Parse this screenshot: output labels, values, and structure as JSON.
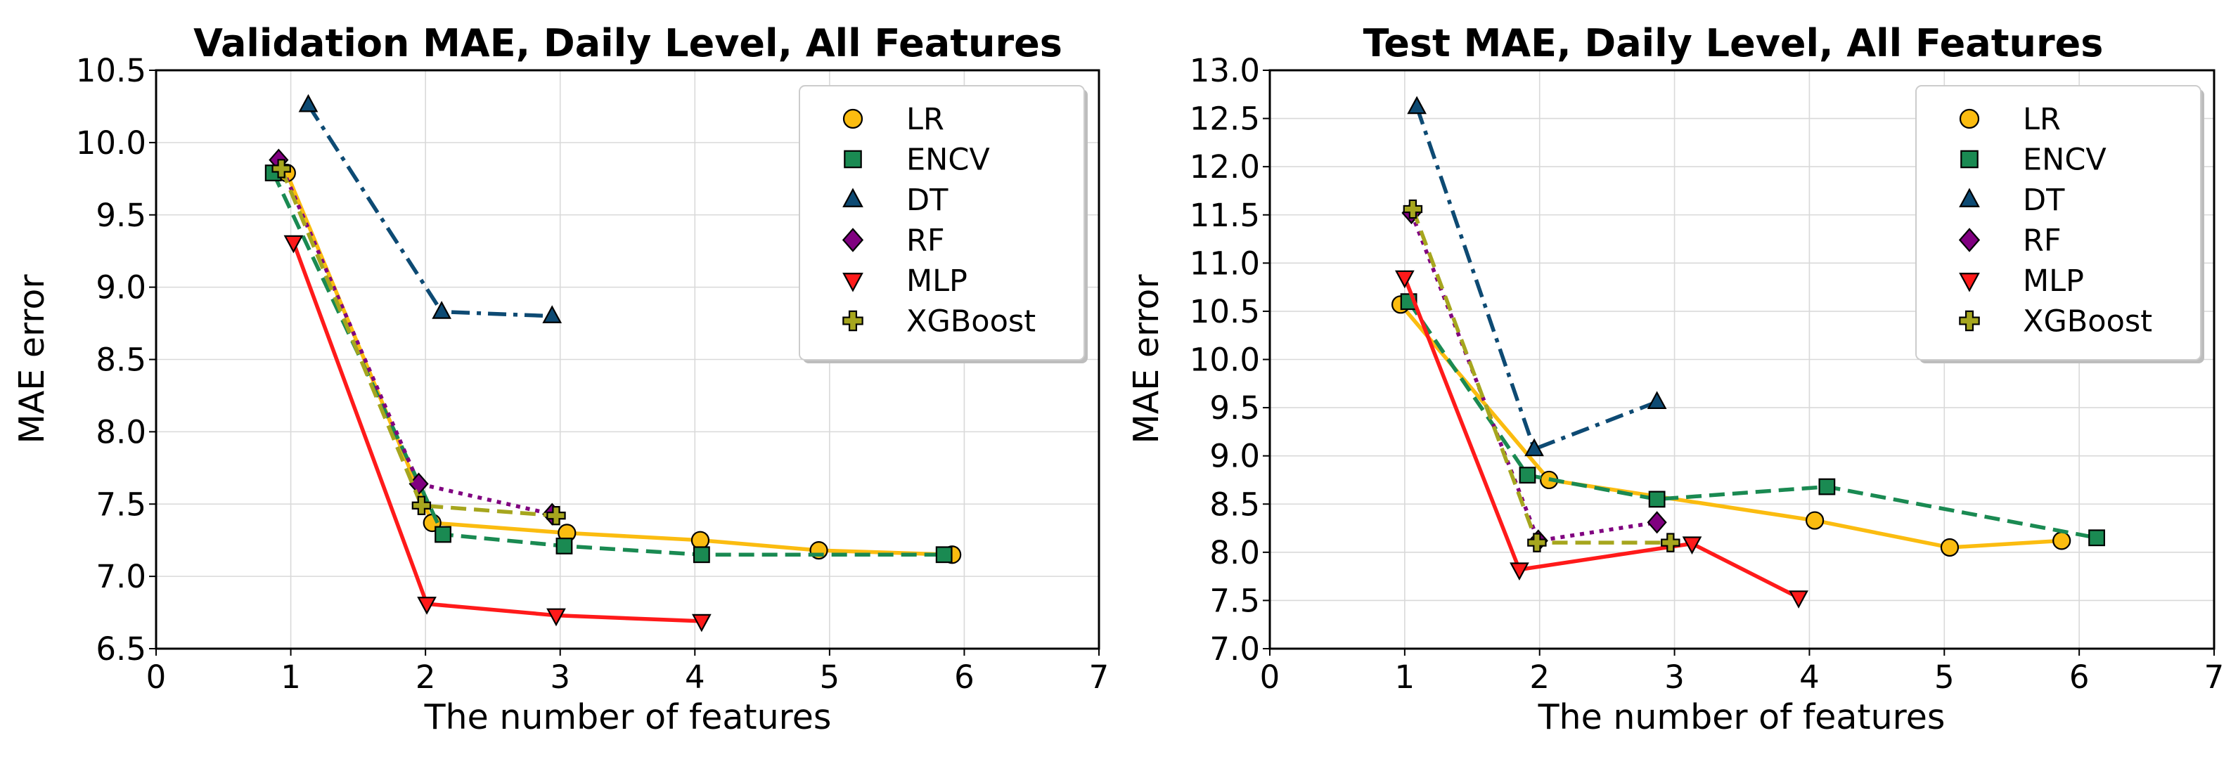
{
  "chart_data": [
    {
      "type": "line",
      "title": "Validation MAE, Daily Level, All Features",
      "xlabel": "The number of features",
      "ylabel": "MAE error",
      "xlim": [
        0,
        7
      ],
      "ylim": [
        6.5,
        10.5
      ],
      "xticks": [
        "0",
        "1",
        "2",
        "3",
        "4",
        "5",
        "6",
        "7"
      ],
      "yticks": [
        "6.5",
        "7.0",
        "7.5",
        "8.0",
        "8.5",
        "9.0",
        "9.5",
        "10.0",
        "10.5"
      ],
      "grid": true,
      "legend_position": "top-right",
      "series": [
        {
          "name": "LR",
          "color": "#fbbc10",
          "marker": "circle",
          "line": "solid",
          "x": [
            0.97,
            2.05,
            3.05,
            4.04,
            4.92,
            5.91
          ],
          "y": [
            9.79,
            7.37,
            7.3,
            7.25,
            7.18,
            7.15
          ]
        },
        {
          "name": "ENCV",
          "color": "#1a8a52",
          "marker": "square",
          "line": "dashed",
          "x": [
            0.87,
            2.13,
            3.03,
            4.05,
            5.85
          ],
          "y": [
            9.79,
            7.29,
            7.21,
            7.15,
            7.15
          ]
        },
        {
          "name": "DT",
          "color": "#0d4a73",
          "marker": "triangle-up",
          "line": "dashdot",
          "x": [
            1.13,
            2.12,
            2.94
          ],
          "y": [
            10.26,
            8.83,
            8.8
          ]
        },
        {
          "name": "RF",
          "color": "#800080",
          "marker": "diamond",
          "line": "dotted",
          "x": [
            0.91,
            1.95,
            2.94
          ],
          "y": [
            9.88,
            7.64,
            7.43
          ]
        },
        {
          "name": "MLP",
          "color": "#ff1a1a",
          "marker": "triangle-down",
          "line": "solid",
          "x": [
            1.02,
            2.01,
            2.97,
            4.05
          ],
          "y": [
            9.31,
            6.81,
            6.73,
            6.69
          ]
        },
        {
          "name": "XGBoost",
          "color": "#a6a61e",
          "marker": "plus",
          "line": "dashed",
          "x": [
            0.93,
            1.97,
            2.97
          ],
          "y": [
            9.82,
            7.49,
            7.42
          ]
        }
      ]
    },
    {
      "type": "line",
      "title": "Test MAE, Daily Level, All Features",
      "xlabel": "The number of features",
      "ylabel": "MAE error",
      "xlim": [
        0,
        7
      ],
      "ylim": [
        7.0,
        13.0
      ],
      "xticks": [
        "0",
        "1",
        "2",
        "3",
        "4",
        "5",
        "6",
        "7"
      ],
      "yticks": [
        "7.0",
        "7.5",
        "8.0",
        "8.5",
        "9.0",
        "9.5",
        "10.0",
        "10.5",
        "11.0",
        "11.5",
        "12.0",
        "12.5",
        "13.0"
      ],
      "grid": true,
      "legend_position": "top-right",
      "series": [
        {
          "name": "LR",
          "color": "#fbbc10",
          "marker": "circle",
          "line": "solid",
          "x": [
            0.97,
            2.07,
            4.04,
            5.04,
            5.87
          ],
          "y": [
            10.57,
            8.75,
            8.33,
            8.05,
            8.12
          ]
        },
        {
          "name": "ENCV",
          "color": "#1a8a52",
          "marker": "square",
          "line": "dashed",
          "x": [
            1.03,
            1.91,
            2.87,
            4.13,
            6.13
          ],
          "y": [
            10.6,
            8.8,
            8.55,
            8.68,
            8.15
          ]
        },
        {
          "name": "DT",
          "color": "#0d4a73",
          "marker": "triangle-up",
          "line": "dashdot",
          "x": [
            1.09,
            1.96,
            2.87
          ],
          "y": [
            12.62,
            9.07,
            9.56
          ]
        },
        {
          "name": "RF",
          "color": "#800080",
          "marker": "diamond",
          "line": "dotted",
          "x": [
            1.05,
            1.99,
            2.87
          ],
          "y": [
            11.52,
            8.12,
            8.31
          ]
        },
        {
          "name": "MLP",
          "color": "#ff1a1a",
          "marker": "triangle-down",
          "line": "solid",
          "x": [
            1.0,
            1.85,
            3.13,
            3.92
          ],
          "y": [
            10.85,
            7.82,
            8.09,
            7.53
          ]
        },
        {
          "name": "XGBoost",
          "color": "#a6a61e",
          "marker": "plus",
          "line": "dashed",
          "x": [
            1.06,
            1.98,
            2.97
          ],
          "y": [
            11.56,
            8.1,
            8.1
          ]
        }
      ]
    }
  ]
}
